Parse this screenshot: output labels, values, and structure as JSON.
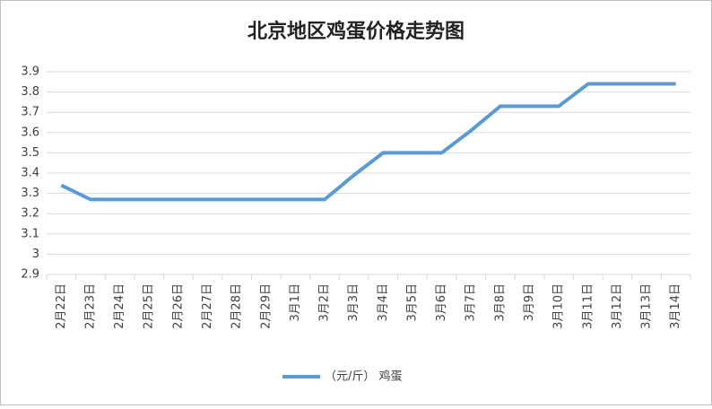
{
  "chart_data": {
    "type": "line",
    "title": "北京地区鸡蛋价格走势图",
    "categories": [
      "2月22日",
      "2月23日",
      "2月24日",
      "2月25日",
      "2月26日",
      "2月27日",
      "2月28日",
      "2月29日",
      "3月1日",
      "3月2日",
      "3月3日",
      "3月4日",
      "3月5日",
      "3月6日",
      "3月7日",
      "3月8日",
      "3月9日",
      "3月10日",
      "3月11日",
      "3月12日",
      "3月13日",
      "3月14日"
    ],
    "series": [
      {
        "name": "（元/斤） 鸡蛋",
        "color": "#5b9bd5",
        "values": [
          3.34,
          3.27,
          3.27,
          3.27,
          3.27,
          3.27,
          3.27,
          3.27,
          3.27,
          3.27,
          3.39,
          3.5,
          3.5,
          3.5,
          3.61,
          3.73,
          3.73,
          3.73,
          3.84,
          3.84,
          3.84,
          3.84
        ]
      }
    ],
    "ylim": [
      2.9,
      3.9
    ],
    "yticks": [
      2.9,
      3,
      3.1,
      3.2,
      3.3,
      3.4,
      3.5,
      3.6,
      3.7,
      3.8,
      3.9
    ],
    "grid": true,
    "legend": "bottom"
  }
}
